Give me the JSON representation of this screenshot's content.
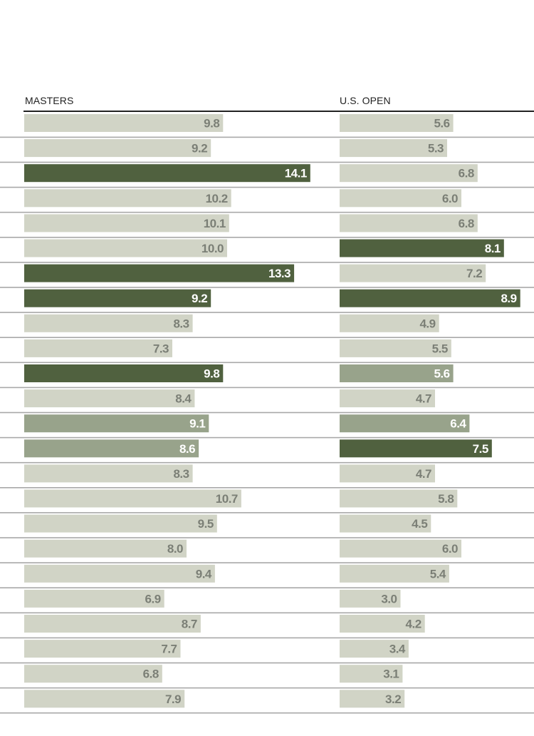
{
  "chart_data": {
    "type": "bar",
    "orientation": "horizontal",
    "title": "",
    "xlabel": "",
    "ylabel": "",
    "grid": false,
    "legend": "none",
    "xlim": [
      0,
      15
    ],
    "colors": {
      "default": "#d1d4c6",
      "highlight": "#50613f",
      "medium": "#98a38b",
      "label_default": "#7b7f76",
      "label_highlight": "#ffffff",
      "row_rule": "#a8a8a8",
      "header_rule": "#222222"
    },
    "panels": [
      {
        "name": "MASTERS",
        "values": [
          9.8,
          9.2,
          14.1,
          10.2,
          10.1,
          10.0,
          13.3,
          9.2,
          8.3,
          7.3,
          9.8,
          8.4,
          9.1,
          8.6,
          8.3,
          10.7,
          9.5,
          8.0,
          9.4,
          6.9,
          8.7,
          7.7,
          6.8,
          7.9
        ],
        "labels": [
          "9.8",
          "9.2",
          "14.1",
          "10.2",
          "10.1",
          "10.0",
          "13.3",
          "9.2",
          "8.3",
          "7.3",
          "9.8",
          "8.4",
          "9.1",
          "8.6",
          "8.3",
          "10.7",
          "9.5",
          "8.0",
          "9.4",
          "6.9",
          "8.7",
          "7.7",
          "6.8",
          "7.9"
        ],
        "styles": [
          "default",
          "default",
          "highlight",
          "default",
          "default",
          "default",
          "highlight",
          "highlight",
          "default",
          "default",
          "highlight",
          "default",
          "medium",
          "medium",
          "default",
          "default",
          "default",
          "default",
          "default",
          "default",
          "default",
          "default",
          "default",
          "default"
        ]
      },
      {
        "name": "U.S. OPEN",
        "values": [
          5.6,
          5.3,
          6.8,
          6.0,
          6.8,
          8.1,
          7.2,
          8.9,
          4.9,
          5.5,
          5.6,
          4.7,
          6.4,
          7.5,
          4.7,
          5.8,
          4.5,
          6.0,
          5.4,
          3.0,
          4.2,
          3.4,
          3.1,
          3.2
        ],
        "labels": [
          "5.6",
          "5.3",
          "6.8",
          "6.0",
          "6.8",
          "8.1",
          "7.2",
          "8.9",
          "4.9",
          "5.5",
          "5.6",
          "4.7",
          "6.4",
          "7.5",
          "4.7",
          "5.8",
          "4.5",
          "6.0",
          "5.4",
          "3.0",
          "4.2",
          "3.4",
          "3.1",
          "3.2"
        ],
        "styles": [
          "default",
          "default",
          "default",
          "default",
          "default",
          "highlight",
          "default",
          "highlight",
          "default",
          "default",
          "medium",
          "default",
          "medium",
          "highlight",
          "default",
          "default",
          "default",
          "default",
          "default",
          "default",
          "default",
          "default",
          "default",
          "default"
        ]
      }
    ]
  }
}
